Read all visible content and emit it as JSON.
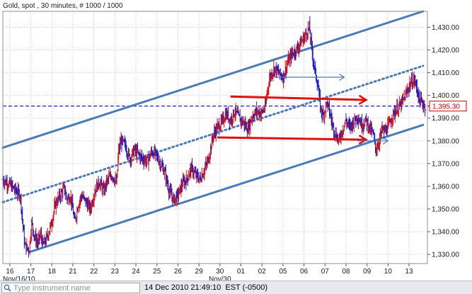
{
  "header": {
    "title": "Gold, spot , 30 minutes, # 1000 / 1000"
  },
  "price_marker": {
    "label": "1,395.30",
    "color": "#cc0000"
  },
  "footer": {
    "search_placeholder": "Type instrument name",
    "timestamp": "14 Dec 2010 21:49:10  EST (-0500)"
  },
  "colors": {
    "up_bar": "#d81010",
    "down_bar": "#1818c8",
    "trendline": "#4a7ab8",
    "arrow": "#e01010",
    "dashed_level": "#1f1fe0"
  },
  "chart_data": {
    "type": "ohlc-bar",
    "title": "Gold, spot , 30 minutes, # 1000 / 1000",
    "interval": "30 minutes",
    "y_axis": {
      "position": "right",
      "range": [
        1326,
        1437
      ],
      "ticks": [
        "1,330.00",
        "1,340.00",
        "1,350.00",
        "1,360.00",
        "1,370.00",
        "1,380.00",
        "1,390.00",
        "1,400.00",
        "1,410.00",
        "1,420.00",
        "1,430.00"
      ],
      "tick_values": [
        1330,
        1340,
        1350,
        1360,
        1370,
        1380,
        1390,
        1400,
        1410,
        1420,
        1430
      ]
    },
    "x_axis": {
      "tick_labels": [
        "16",
        "17",
        "18",
        "21",
        "22",
        "23",
        "24",
        "25",
        "26",
        "29",
        "30",
        "01",
        "02",
        "05",
        "06",
        "07",
        "08",
        "09",
        "10",
        "13"
      ],
      "month_labels": [
        "Nov/16/10",
        "Nov/30"
      ]
    },
    "grid": true,
    "current_price": 1395.3,
    "price_path": [
      [
        0,
        1363
      ],
      [
        1,
        1360
      ],
      [
        2,
        1356
      ],
      [
        2.5,
        1334
      ],
      [
        3,
        1332
      ],
      [
        3.3,
        1344
      ],
      [
        3.6,
        1338
      ],
      [
        4,
        1335
      ],
      [
        4.3,
        1339
      ],
      [
        4.6,
        1334
      ],
      [
        5,
        1337
      ],
      [
        5.5,
        1343
      ],
      [
        6,
        1352
      ],
      [
        6.4,
        1355
      ],
      [
        6.7,
        1357
      ],
      [
        7,
        1359
      ],
      [
        7.4,
        1354
      ],
      [
        7.7,
        1356
      ],
      [
        8,
        1350
      ],
      [
        8.2,
        1344
      ],
      [
        8.6,
        1352
      ],
      [
        9,
        1356
      ],
      [
        9.5,
        1353
      ],
      [
        10,
        1350
      ],
      [
        10.5,
        1358
      ],
      [
        11,
        1362
      ],
      [
        11.5,
        1358
      ],
      [
        12,
        1363
      ],
      [
        12.5,
        1365
      ],
      [
        13,
        1361
      ],
      [
        13.2,
        1375
      ],
      [
        13.5,
        1380
      ],
      [
        14,
        1378
      ],
      [
        14.5,
        1372
      ],
      [
        15,
        1376
      ],
      [
        15.5,
        1374
      ],
      [
        16,
        1372
      ],
      [
        16.5,
        1371
      ],
      [
        17,
        1375
      ],
      [
        17.5,
        1374
      ],
      [
        18,
        1370
      ],
      [
        18.5,
        1366
      ],
      [
        19,
        1358
      ],
      [
        19.5,
        1354
      ],
      [
        20,
        1356
      ],
      [
        20.5,
        1361
      ],
      [
        21,
        1363
      ],
      [
        21.5,
        1368
      ],
      [
        22,
        1365
      ],
      [
        22.5,
        1363
      ],
      [
        23,
        1367
      ],
      [
        23.5,
        1372
      ],
      [
        24,
        1382
      ],
      [
        24.5,
        1386
      ],
      [
        25,
        1388
      ],
      [
        25.5,
        1392
      ],
      [
        26,
        1389
      ],
      [
        26.5,
        1393
      ],
      [
        27,
        1390
      ],
      [
        27.5,
        1388
      ],
      [
        28,
        1385
      ],
      [
        28.5,
        1391
      ],
      [
        29,
        1393
      ],
      [
        29.5,
        1392
      ],
      [
        30,
        1395
      ],
      [
        30.2,
        1402
      ],
      [
        30.5,
        1408
      ],
      [
        31,
        1412
      ],
      [
        31.5,
        1410
      ],
      [
        32,
        1408
      ],
      [
        32.5,
        1414
      ],
      [
        33,
        1418
      ],
      [
        33.5,
        1420
      ],
      [
        34,
        1423
      ],
      [
        34.5,
        1426
      ],
      [
        35,
        1430
      ],
      [
        35.3,
        1420
      ],
      [
        35.6,
        1412
      ],
      [
        36,
        1404
      ],
      [
        36.3,
        1394
      ],
      [
        36.6,
        1391
      ],
      [
        37,
        1397
      ],
      [
        37.3,
        1393
      ],
      [
        37.6,
        1388
      ],
      [
        38,
        1383
      ],
      [
        38.4,
        1380
      ],
      [
        38.8,
        1385
      ],
      [
        39.2,
        1389
      ],
      [
        39.6,
        1386
      ],
      [
        40,
        1388
      ],
      [
        40.5,
        1391
      ],
      [
        41,
        1387
      ],
      [
        41.5,
        1389
      ],
      [
        42,
        1385
      ],
      [
        42.3,
        1383
      ],
      [
        42.6,
        1376
      ],
      [
        43,
        1380
      ],
      [
        43.3,
        1385
      ],
      [
        43.6,
        1384
      ],
      [
        44,
        1386
      ],
      [
        44.5,
        1391
      ],
      [
        45,
        1394
      ],
      [
        45.5,
        1396
      ],
      [
        46,
        1400
      ],
      [
        46.5,
        1405
      ],
      [
        47,
        1407
      ],
      [
        47.3,
        1403
      ],
      [
        47.6,
        1398
      ],
      [
        48,
        1396
      ],
      [
        48.3,
        1395.3
      ]
    ],
    "channel_lines": [
      {
        "name": "",
        "style": "solid",
        "points": [
          [
            0,
            1377
          ],
          [
            48,
            1437
          ]
        ]
      },
      {
        "name": "",
        "style": "dotted",
        "points": [
          [
            0,
            1353
          ],
          [
            48,
            1413
          ]
        ]
      },
      {
        "name": "",
        "style": "solid",
        "points": [
          [
            3,
            1331
          ],
          [
            48,
            1387
          ]
        ]
      }
    ],
    "horizontal_levels": [
      {
        "style": "dashed",
        "value": 1395.3,
        "x": [
          0,
          48
        ]
      }
    ],
    "arrows": [
      {
        "color": "red",
        "from": [
          26,
          1399.5
        ],
        "to": [
          41.5,
          1398
        ]
      },
      {
        "color": "red",
        "from": [
          24.5,
          1381.5
        ],
        "to": [
          41.5,
          1380.5
        ]
      },
      {
        "color": "blue",
        "from": [
          31,
          1408
        ],
        "to": [
          39,
          1408
        ]
      },
      {
        "color": "blue",
        "from": [
          40.5,
          1380
        ],
        "to": [
          44,
          1380
        ]
      }
    ]
  }
}
